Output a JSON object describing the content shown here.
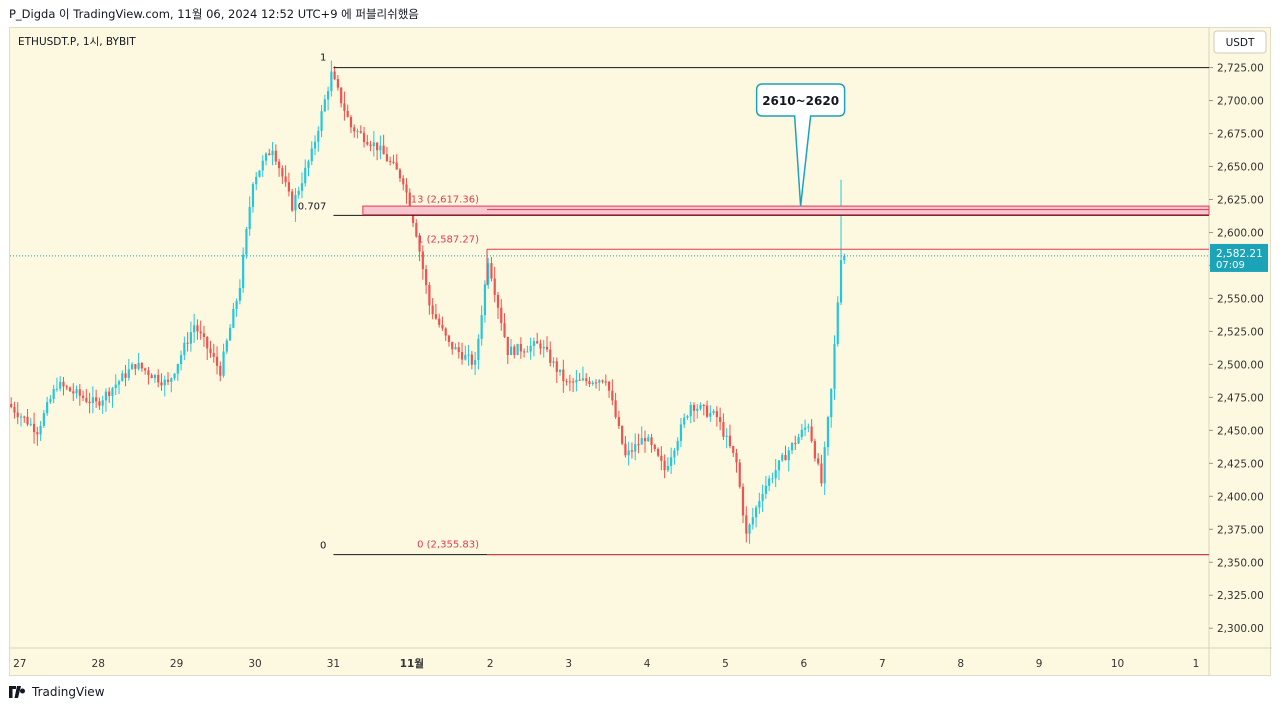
{
  "header": {
    "text": "P_Digda 이 TradingView.com, 11월 06, 2024 12:52 UTC+9 에 퍼블리쉬했음"
  },
  "symbol": {
    "label": "ETHUSDT.P, 1시, BYBIT"
  },
  "currency": {
    "label": "USDT"
  },
  "last_price": {
    "value": "2,582.21",
    "countdown": "07:09"
  },
  "brand": {
    "label": "TradingView"
  },
  "annotation": {
    "label": "2610~2620"
  },
  "fib": {
    "left": [
      {
        "label": "1",
        "price": 2725
      },
      {
        "label": "0.707",
        "price": 2613
      },
      {
        "label": "0",
        "price": 2355.83
      }
    ],
    "right": [
      {
        "label": ".13 (2,617.36)",
        "price": 2617.36
      },
      {
        "label": "1 (2,587.27)",
        "price": 2587.27
      },
      {
        "label": "0 (2,355.83)",
        "price": 2355.83
      }
    ]
  },
  "colors": {
    "background": "#fdf9e0",
    "up": "#26c6da",
    "down": "#ef5350",
    "fib_red": "#e53950",
    "accent": "#1ba3b8",
    "zone_fill": "#f7c6cf"
  },
  "chart_data": {
    "type": "candlestick",
    "symbol": "ETHUSDT.P",
    "interval": "1시",
    "exchange": "BYBIT",
    "ylim": [
      2285,
      2755
    ],
    "y_ticks": [
      "2,300.00",
      "2,325.00",
      "2,350.00",
      "2,375.00",
      "2,400.00",
      "2,425.00",
      "2,450.00",
      "2,475.00",
      "2,500.00",
      "2,525.00",
      "2,550.00",
      "2,575.00",
      "2,600.00",
      "2,625.00",
      "2,650.00",
      "2,675.00",
      "2,700.00",
      "2,725.00"
    ],
    "x_ticks": [
      "27",
      "28",
      "29",
      "30",
      "31",
      "11월",
      "2",
      "3",
      "4",
      "5",
      "6",
      "7",
      "8",
      "9",
      "10",
      "1"
    ],
    "x_range": [
      "2024-10-26T21:00",
      "2024-11-11T04:00"
    ],
    "last_price": 2582.21,
    "price_path": [
      {
        "t": "2024-10-26T21:00",
        "p": 2470
      },
      {
        "t": "2024-10-27T06:00",
        "p": 2450
      },
      {
        "t": "2024-10-27T12:00",
        "p": 2485
      },
      {
        "t": "2024-10-28T00:00",
        "p": 2470
      },
      {
        "t": "2024-10-28T12:00",
        "p": 2500
      },
      {
        "t": "2024-10-28T22:00",
        "p": 2485
      },
      {
        "t": "2024-10-29T06:00",
        "p": 2530
      },
      {
        "t": "2024-10-29T14:00",
        "p": 2495
      },
      {
        "t": "2024-10-29T20:00",
        "p": 2560
      },
      {
        "t": "2024-10-30T00:00",
        "p": 2640
      },
      {
        "t": "2024-10-30T06:00",
        "p": 2665
      },
      {
        "t": "2024-10-30T12:00",
        "p": 2620
      },
      {
        "t": "2024-10-30T18:00",
        "p": 2660
      },
      {
        "t": "2024-10-31T00:00",
        "p": 2720
      },
      {
        "t": "2024-10-31T06:00",
        "p": 2680
      },
      {
        "t": "2024-10-31T14:00",
        "p": 2665
      },
      {
        "t": "2024-10-31T22:00",
        "p": 2640
      },
      {
        "t": "2024-11-01T02:00",
        "p": 2600
      },
      {
        "t": "2024-11-01T06:00",
        "p": 2545
      },
      {
        "t": "2024-11-01T12:00",
        "p": 2515
      },
      {
        "t": "2024-11-01T20:00",
        "p": 2500
      },
      {
        "t": "2024-11-02T00:00",
        "p": 2580
      },
      {
        "t": "2024-11-02T06:00",
        "p": 2510
      },
      {
        "t": "2024-11-02T16:00",
        "p": 2515
      },
      {
        "t": "2024-11-03T00:00",
        "p": 2485
      },
      {
        "t": "2024-11-03T12:00",
        "p": 2490
      },
      {
        "t": "2024-11-03T18:00",
        "p": 2430
      },
      {
        "t": "2024-11-04T00:00",
        "p": 2445
      },
      {
        "t": "2024-11-04T06:00",
        "p": 2420
      },
      {
        "t": "2024-11-04T14:00",
        "p": 2470
      },
      {
        "t": "2024-11-04T22:00",
        "p": 2460
      },
      {
        "t": "2024-11-05T04:00",
        "p": 2425
      },
      {
        "t": "2024-11-05T07:00",
        "p": 2370
      },
      {
        "t": "2024-11-05T12:00",
        "p": 2405
      },
      {
        "t": "2024-11-05T20:00",
        "p": 2435
      },
      {
        "t": "2024-11-06T02:00",
        "p": 2455
      },
      {
        "t": "2024-11-06T06:00",
        "p": 2410
      },
      {
        "t": "2024-11-06T09:00",
        "p": 2480
      },
      {
        "t": "2024-11-06T12:00",
        "p": 2582.21
      }
    ]
  }
}
